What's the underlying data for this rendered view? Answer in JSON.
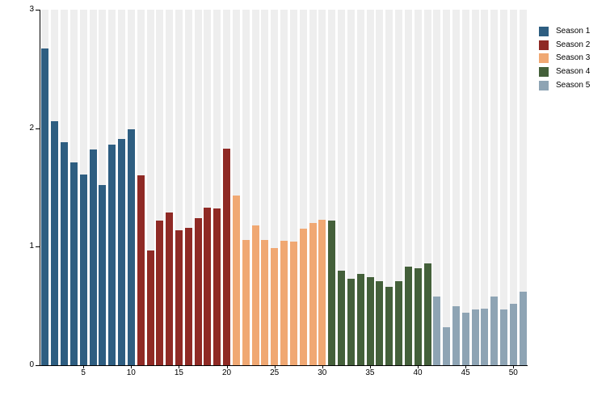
{
  "chart_data": {
    "type": "bar",
    "title": "",
    "xlabel": "",
    "ylabel": "",
    "ylim": [
      0,
      3
    ],
    "yticks": [
      "0",
      "1",
      "2",
      "3"
    ],
    "xticks": [
      5,
      10,
      15,
      20,
      25,
      30,
      35,
      40,
      45,
      50
    ],
    "n_bars": 51,
    "grid": "full-height light-gray background stripe behind every bar",
    "stripe_color": "#eeeeee",
    "axis_color": "#000000",
    "legend_position": "top-right, outside plot area",
    "series": [
      {
        "name": "Season 1",
        "color": "#2e5e81",
        "x_start": 1,
        "values": [
          2.67,
          2.06,
          1.88,
          1.71,
          1.61,
          1.82,
          1.52,
          1.86,
          1.91,
          1.99
        ]
      },
      {
        "name": "Season 2",
        "color": "#8f2a25",
        "x_start": 11,
        "values": [
          1.6,
          0.97,
          1.22,
          1.29,
          1.14,
          1.16,
          1.24,
          1.33,
          1.32,
          1.83
        ]
      },
      {
        "name": "Season 3",
        "color": "#f0a873",
        "x_start": 21,
        "values": [
          1.43,
          1.06,
          1.18,
          1.06,
          0.99,
          1.05,
          1.04,
          1.15,
          1.2,
          1.23
        ]
      },
      {
        "name": "Season 4",
        "color": "#44603a",
        "x_start": 31,
        "values": [
          1.22,
          0.8,
          0.73,
          0.77,
          0.74,
          0.71,
          0.66,
          0.71,
          0.83,
          0.82,
          0.86
        ]
      },
      {
        "name": "Season 5",
        "color": "#8ea4b4",
        "x_start": 42,
        "values": [
          0.58,
          0.32,
          0.5,
          0.44,
          0.47,
          0.48,
          0.58,
          0.47,
          0.52,
          0.62
        ]
      }
    ]
  }
}
